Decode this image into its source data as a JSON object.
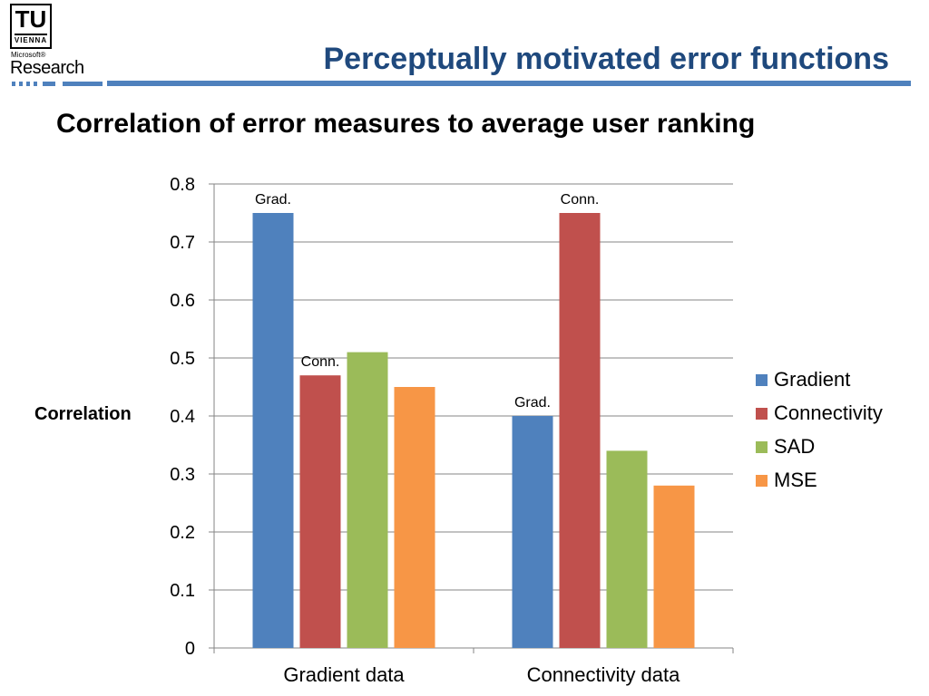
{
  "logo": {
    "tu_letters": "TU",
    "tu_sub": "VIENNA",
    "ms_small": "Microsoft®",
    "ms_big": "Research"
  },
  "slide_title": "Perceptually motivated error functions",
  "chart_heading": "Correlation of error measures to average user ranking",
  "colors": {
    "header_blue": "#4f81bd",
    "title_blue": "#1f497d",
    "gridline": "#868686"
  },
  "chart_data": {
    "type": "bar",
    "title": "Correlation of error measures to average user ranking",
    "xlabel": "",
    "ylabel": "Correlation",
    "ylim": [
      0,
      0.8
    ],
    "ytick_step": 0.1,
    "yticks": [
      "0",
      "0.1",
      "0.2",
      "0.3",
      "0.4",
      "0.5",
      "0.6",
      "0.7",
      "0.8"
    ],
    "grid": true,
    "legend_position": "right",
    "categories": [
      "Gradient data",
      "Connectivity data"
    ],
    "series": [
      {
        "name": "Gradient",
        "color": "#4f81bd",
        "values": [
          0.75,
          0.4
        ]
      },
      {
        "name": "Connectivity",
        "color": "#c0504d",
        "values": [
          0.47,
          0.75
        ]
      },
      {
        "name": "SAD",
        "color": "#9bbb59",
        "values": [
          0.51,
          0.34
        ]
      },
      {
        "name": "MSE",
        "color": "#f79646",
        "values": [
          0.45,
          0.28
        ]
      }
    ],
    "annotations": [
      {
        "text": "Grad.",
        "series": 0,
        "category": 0
      },
      {
        "text": "Conn.",
        "series": 1,
        "category": 0
      },
      {
        "text": "Conn.",
        "series": 1,
        "category": 1
      },
      {
        "text": "Grad.",
        "series": 0,
        "category": 1
      }
    ]
  }
}
